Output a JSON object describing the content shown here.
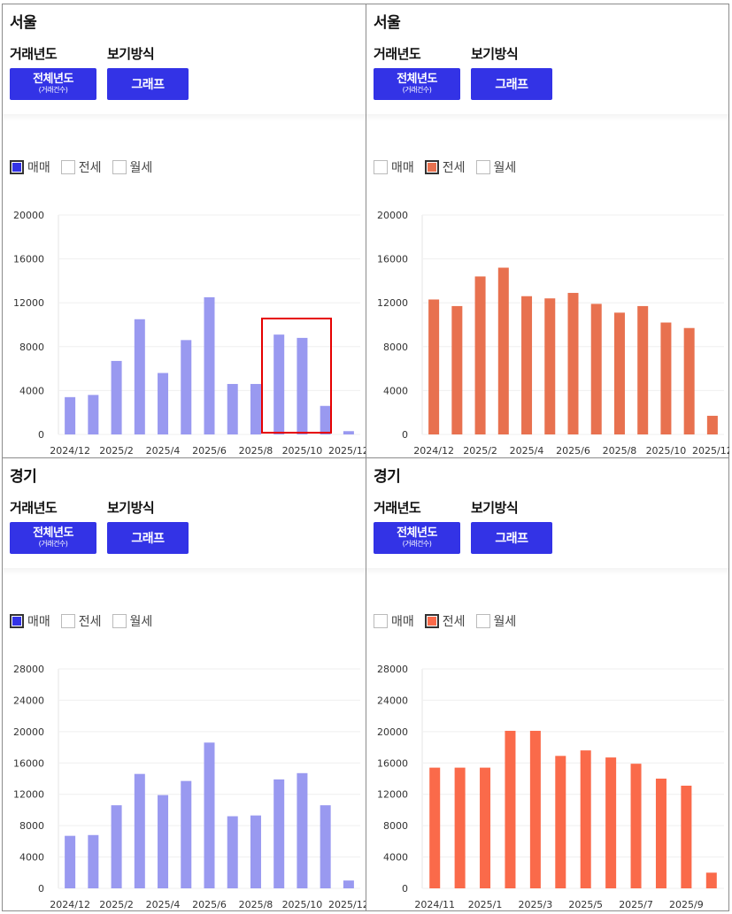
{
  "panels": [
    {
      "region": "서울",
      "year_label": "거래년도",
      "view_label": "보기방식",
      "year_button": {
        "main": "전체년도",
        "sub": "(거래건수)"
      },
      "view_button": "그래프",
      "legend": [
        {
          "label": "매매",
          "checked": true
        },
        {
          "label": "전세",
          "checked": false
        },
        {
          "label": "월세",
          "checked": false
        }
      ],
      "chart_data": {
        "type": "bar",
        "series_name": "매매",
        "color": "#9999f0",
        "check_color": "#3333e6",
        "categories": [
          "2024/12",
          "2025/1",
          "2025/2",
          "2025/3",
          "2025/4",
          "2025/5",
          "2025/6",
          "2025/7",
          "2025/8",
          "2025/9",
          "2025/10",
          "2025/11",
          "2025/12"
        ],
        "values": [
          3400,
          3600,
          6700,
          10500,
          5600,
          8600,
          12500,
          4600,
          4600,
          9100,
          8800,
          2600,
          300
        ],
        "tick_labels": [
          "2024/12",
          "2025/2",
          "2025/4",
          "2025/6",
          "2025/8",
          "2025/10",
          "2025/12"
        ],
        "yticks": [
          0,
          4000,
          8000,
          12000,
          16000,
          20000
        ],
        "ylim": [
          0,
          20000
        ]
      }
    },
    {
      "region": "서울",
      "year_label": "거래년도",
      "view_label": "보기방식",
      "year_button": {
        "main": "전체년도",
        "sub": "(거래건수)"
      },
      "view_button": "그래프",
      "legend": [
        {
          "label": "매매",
          "checked": false
        },
        {
          "label": "전세",
          "checked": true
        },
        {
          "label": "월세",
          "checked": false
        }
      ],
      "chart_data": {
        "type": "bar",
        "series_name": "전세",
        "color": "#e8714f",
        "check_color": "#e8714f",
        "categories": [
          "2024/12",
          "2025/1",
          "2025/2",
          "2025/3",
          "2025/4",
          "2025/5",
          "2025/6",
          "2025/7",
          "2025/8",
          "2025/9",
          "2025/10",
          "2025/11",
          "2025/12"
        ],
        "values": [
          12300,
          11700,
          14400,
          15200,
          12600,
          12400,
          12900,
          11900,
          11100,
          11700,
          10200,
          9700,
          1700
        ],
        "tick_labels": [
          "2024/12",
          "2025/2",
          "2025/4",
          "2025/6",
          "2025/8",
          "2025/10",
          "2025/12"
        ],
        "yticks": [
          0,
          4000,
          8000,
          12000,
          16000,
          20000
        ],
        "ylim": [
          0,
          20000
        ]
      }
    },
    {
      "region": "경기",
      "year_label": "거래년도",
      "view_label": "보기방식",
      "year_button": {
        "main": "전체년도",
        "sub": "(거래건수)"
      },
      "view_button": "그래프",
      "legend": [
        {
          "label": "매매",
          "checked": true
        },
        {
          "label": "전세",
          "checked": false
        },
        {
          "label": "월세",
          "checked": false
        }
      ],
      "chart_data": {
        "type": "bar",
        "series_name": "매매",
        "color": "#9999f0",
        "check_color": "#3333e6",
        "categories": [
          "2024/12",
          "2025/1",
          "2025/2",
          "2025/3",
          "2025/4",
          "2025/5",
          "2025/6",
          "2025/7",
          "2025/8",
          "2025/9",
          "2025/10",
          "2025/11",
          "2025/12"
        ],
        "values": [
          6700,
          6800,
          10600,
          14600,
          11900,
          13700,
          18600,
          9200,
          9300,
          13900,
          14700,
          10600,
          1000
        ],
        "tick_labels": [
          "2024/12",
          "2025/2",
          "2025/4",
          "2025/6",
          "2025/8",
          "2025/10",
          "2025/12"
        ],
        "yticks": [
          0,
          4000,
          8000,
          12000,
          16000,
          20000,
          24000,
          28000
        ],
        "ylim": [
          0,
          28000
        ]
      }
    },
    {
      "region": "경기",
      "year_label": "거래년도",
      "view_label": "보기방식",
      "year_button": {
        "main": "전체년도",
        "sub": "(거래건수)"
      },
      "view_button": "그래프",
      "legend": [
        {
          "label": "매매",
          "checked": false
        },
        {
          "label": "전세",
          "checked": true
        },
        {
          "label": "월세",
          "checked": false
        }
      ],
      "chart_data": {
        "type": "bar",
        "series_name": "전세",
        "color": "#fa6a4a",
        "check_color": "#fa6a4a",
        "categories": [
          "2024/11",
          "2024/12",
          "2025/1",
          "2025/2",
          "2025/3",
          "2025/4",
          "2025/5",
          "2025/6",
          "2025/7",
          "2025/8",
          "2025/9",
          "2025/10"
        ],
        "values": [
          15400,
          15400,
          15400,
          20100,
          20100,
          16900,
          17600,
          16700,
          15900,
          14000,
          13100,
          2000
        ],
        "tick_labels": [
          "2024/11",
          "2025/1",
          "2025/3",
          "2025/5",
          "2025/7",
          "2025/9"
        ],
        "yticks": [
          0,
          4000,
          8000,
          12000,
          16000,
          20000,
          24000,
          28000
        ],
        "ylim": [
          0,
          28000
        ]
      }
    }
  ]
}
